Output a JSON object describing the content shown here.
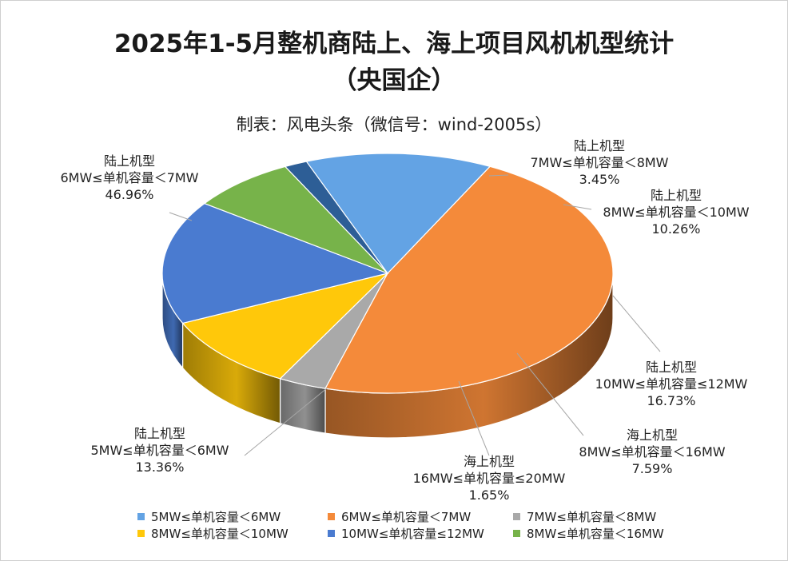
{
  "chart_data": {
    "type": "pie",
    "title_lines": [
      "2025年1-5月整机商陆上、海上项目风机机型统计",
      "（央国企）"
    ],
    "subtitle": "制表：风电头条（微信号：wind-2005s）",
    "slices": [
      {
        "category": "陆上机型",
        "label": "6MW≤单机容量＜7MW",
        "value": 46.96,
        "value_text": "46.96%",
        "color": "#F48A3A"
      },
      {
        "category": "陆上机型",
        "label": "7MW≤单机容量＜8MW",
        "value": 3.45,
        "value_text": "3.45%",
        "color": "#A9A9A9"
      },
      {
        "category": "陆上机型",
        "label": "8MW≤单机容量＜10MW",
        "value": 10.26,
        "value_text": "10.26%",
        "color": "#FFC80A"
      },
      {
        "category": "陆上机型",
        "label": "10MW≤单机容量≤12MW",
        "value": 16.73,
        "value_text": "16.73%",
        "color": "#4A7BD0"
      },
      {
        "category": "海上机型",
        "label": "8MW≤单机容量＜16MW",
        "value": 7.59,
        "value_text": "7.59%",
        "color": "#77B34A"
      },
      {
        "category": "海上机型",
        "label": "16MW≤单机容量≤20MW",
        "value": 1.65,
        "value_text": "1.65%",
        "color": "#2D5E96"
      },
      {
        "category": "陆上机型",
        "label": "5MW≤单机容量＜6MW",
        "value": 13.36,
        "value_text": "13.36%",
        "color": "#63A3E4"
      }
    ],
    "legend": [
      {
        "label": "5MW≤单机容量＜6MW",
        "color": "#63A3E4"
      },
      {
        "label": "6MW≤单机容量＜7MW",
        "color": "#F48A3A"
      },
      {
        "label": "7MW≤单机容量＜8MW",
        "color": "#A9A9A9"
      },
      {
        "label": "8MW≤单机容量＜10MW",
        "color": "#FFC80A"
      },
      {
        "label": "10MW≤单机容量≤12MW",
        "color": "#4A7BD0"
      },
      {
        "label": "8MW≤单机容量＜16MW",
        "color": "#77B34A"
      }
    ],
    "legend_position": "bottom"
  }
}
